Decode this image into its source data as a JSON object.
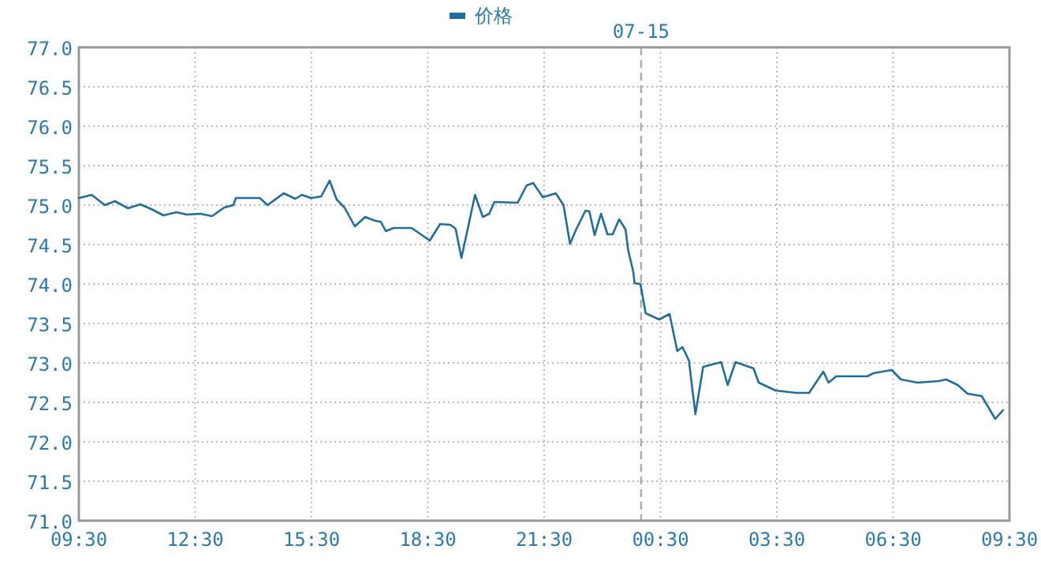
{
  "chart_data": {
    "type": "line",
    "x": [
      "--07-14T09:30",
      "--07-14T09:50",
      "--07-14T10:10",
      "--07-14T10:26",
      "--07-14T10:46",
      "--07-14T11:05",
      "--07-14T11:22",
      "--07-14T11:41",
      "--07-14T12:01",
      "--07-14T12:17",
      "--07-14T12:38",
      "--07-14T12:56",
      "--07-14T13:15",
      "--07-14T13:29",
      "--07-14T13:33",
      "--07-14T14:10",
      "--07-14T14:22",
      "--07-14T14:47",
      "--07-14T15:05",
      "--07-14T15:15",
      "--07-14T15:29",
      "--07-14T15:45",
      "--07-14T15:58",
      "--07-14T16:09",
      "--07-14T16:21",
      "--07-14T16:37",
      "--07-14T16:53",
      "--07-14T17:09",
      "--07-14T17:17",
      "--07-14T17:25",
      "--07-14T17:37",
      "--07-14T18:05",
      "--07-14T18:33",
      "--07-14T18:49",
      "--07-14T19:05",
      "--07-14T19:13",
      "--07-14T19:22",
      "--07-14T19:43",
      "--07-14T19:55",
      "--07-14T20:05",
      "--07-14T20:13",
      "--07-14T20:49",
      "--07-14T21:03",
      "--07-14T21:13",
      "--07-14T21:28",
      "--07-14T21:48",
      "--07-14T22:00",
      "--07-14T22:10",
      "--07-14T22:20",
      "--07-14T22:34",
      "--07-14T22:40",
      "--07-14T22:48",
      "--07-14T22:58",
      "--07-14T23:08",
      "--07-14T23:16",
      "--07-14T23:26",
      "--07-14T23:36",
      "--07-14T23:40",
      "--07-14T23:48",
      "--07-14T23:50",
      "--07-14T23:59",
      "--07-15T00:07",
      "--07-15T00:28",
      "--07-15T00:44",
      "--07-15T00:56",
      "--07-15T01:04",
      "--07-15T01:14",
      "--07-15T01:24",
      "--07-15T01:36",
      "--07-15T02:04",
      "--07-15T02:14",
      "--07-15T02:26",
      "--07-15T02:40",
      "--07-15T02:54",
      "--07-15T03:02",
      "--07-15T03:28",
      "--07-15T04:00",
      "--07-15T04:20",
      "--07-15T04:42",
      "--07-15T04:50",
      "--07-15T05:02",
      "--07-15T05:50",
      "--07-15T06:00",
      "--07-15T06:28",
      "--07-15T06:42",
      "--07-15T07:08",
      "--07-15T07:41",
      "--07-15T07:52",
      "--07-15T08:10",
      "--07-15T08:25",
      "--07-15T08:47",
      "--07-15T09:08",
      "--07-15T09:20"
    ],
    "series": [
      {
        "name": "价格",
        "color": "#1f6e9e",
        "values": [
          75.09,
          75.13,
          75.0,
          75.05,
          74.96,
          75.01,
          74.95,
          74.87,
          74.91,
          74.88,
          74.89,
          74.86,
          74.97,
          75.0,
          75.09,
          75.09,
          75.0,
          75.15,
          75.08,
          75.13,
          75.09,
          75.11,
          75.31,
          75.07,
          74.97,
          74.73,
          74.85,
          74.8,
          74.79,
          74.67,
          74.71,
          74.71,
          74.55,
          74.76,
          74.75,
          74.7,
          74.33,
          75.13,
          74.85,
          74.89,
          75.04,
          75.03,
          75.25,
          75.28,
          75.1,
          75.15,
          75.0,
          74.51,
          74.7,
          74.93,
          74.92,
          74.62,
          74.89,
          74.63,
          74.63,
          74.82,
          74.69,
          74.43,
          74.15,
          74.01,
          74.0,
          73.63,
          73.55,
          73.62,
          73.15,
          73.2,
          73.03,
          72.35,
          72.95,
          73.01,
          72.72,
          73.01,
          72.97,
          72.93,
          72.75,
          72.65,
          72.62,
          72.62,
          72.89,
          72.75,
          72.83,
          72.83,
          72.87,
          72.91,
          72.79,
          72.75,
          72.77,
          72.79,
          72.72,
          72.61,
          72.58,
          72.29,
          72.4
        ]
      }
    ],
    "xlim": [
      "--07-14T09:30",
      "--07-15T09:30"
    ],
    "xticks": [
      {
        "value": "--07-14T09:30",
        "label": "09:30"
      },
      {
        "value": "--07-14T12:30",
        "label": "12:30"
      },
      {
        "value": "--07-14T15:30",
        "label": "15:30"
      },
      {
        "value": "--07-14T18:30",
        "label": "18:30"
      },
      {
        "value": "--07-14T21:30",
        "label": "21:30"
      },
      {
        "value": "--07-15T00:30",
        "label": "00:30"
      },
      {
        "value": "--07-15T03:30",
        "label": "03:30"
      },
      {
        "value": "--07-15T06:30",
        "label": "06:30"
      },
      {
        "value": "--07-15T09:30",
        "label": "09:30"
      }
    ],
    "ylim": [
      71,
      77
    ],
    "yticks": [
      {
        "value": 71,
        "label": "71.0"
      },
      {
        "value": 71.5,
        "label": "71.5"
      },
      {
        "value": 72,
        "label": "72.0"
      },
      {
        "value": 72.5,
        "label": "72.5"
      },
      {
        "value": 73,
        "label": "73.0"
      },
      {
        "value": 73.5,
        "label": "73.5"
      },
      {
        "value": 74,
        "label": "74.0"
      },
      {
        "value": 74.5,
        "label": "74.5"
      },
      {
        "value": 75,
        "label": "75.0"
      },
      {
        "value": 75.5,
        "label": "75.5"
      },
      {
        "value": 76,
        "label": "76.0"
      },
      {
        "value": 76.5,
        "label": "76.5"
      },
      {
        "value": 77,
        "label": "77.0"
      }
    ],
    "ref_lines": [
      {
        "axis": "x",
        "value": "--07-15",
        "label": "07-15",
        "color": "#aaaaaa",
        "line_style": "dashed"
      }
    ],
    "grid": true,
    "legend": "top",
    "line_style": "solid",
    "marker": "none"
  }
}
